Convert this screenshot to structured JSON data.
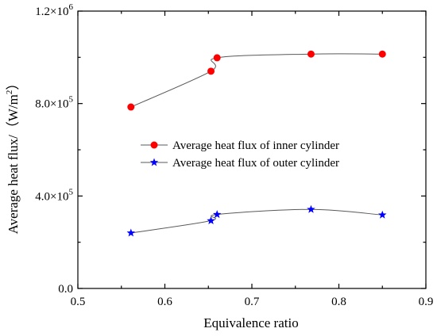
{
  "chart_data": {
    "type": "line",
    "title": "",
    "xlabel": "Equivalence ratio",
    "ylabel_parts": [
      "Average heat flux/（W/m",
      "2",
      "）"
    ],
    "xlim": [
      0.5,
      0.9
    ],
    "ylim": [
      0,
      1200000
    ],
    "x_ticks": [
      {
        "value": 0.5,
        "label": "0.5"
      },
      {
        "value": 0.6,
        "label": "0.6"
      },
      {
        "value": 0.7,
        "label": "0.7"
      },
      {
        "value": 0.8,
        "label": "0.8"
      },
      {
        "value": 0.9,
        "label": "0.9"
      }
    ],
    "y_ticks": [
      {
        "value": 0,
        "label": "0.0",
        "mant": "",
        "exp": ""
      },
      {
        "value": 400000,
        "label": "4.0×10^5",
        "mant": "4.0×10",
        "exp": "5"
      },
      {
        "value": 800000,
        "label": "8.0×10^5",
        "mant": "8.0×10",
        "exp": "5"
      },
      {
        "value": 1200000,
        "label": "1.2×10^6",
        "mant": "1.2×10",
        "exp": "6"
      }
    ],
    "grid": false,
    "legend_position": "center",
    "series": [
      {
        "name": "Average heat flux of inner cylinder",
        "marker": "circle",
        "marker_color": "#ff0000",
        "line_color": "#595959",
        "x": [
          0.561,
          0.653,
          0.66,
          0.768,
          0.85
        ],
        "y": [
          785000,
          940000,
          998000,
          1014000,
          1014000
        ]
      },
      {
        "name": "Average heat flux of outer cylinder",
        "marker": "star",
        "marker_color": "#0000ff",
        "line_color": "#595959",
        "x": [
          0.561,
          0.653,
          0.66,
          0.768,
          0.85
        ],
        "y": [
          240000,
          293000,
          320000,
          342000,
          318000
        ]
      }
    ]
  }
}
